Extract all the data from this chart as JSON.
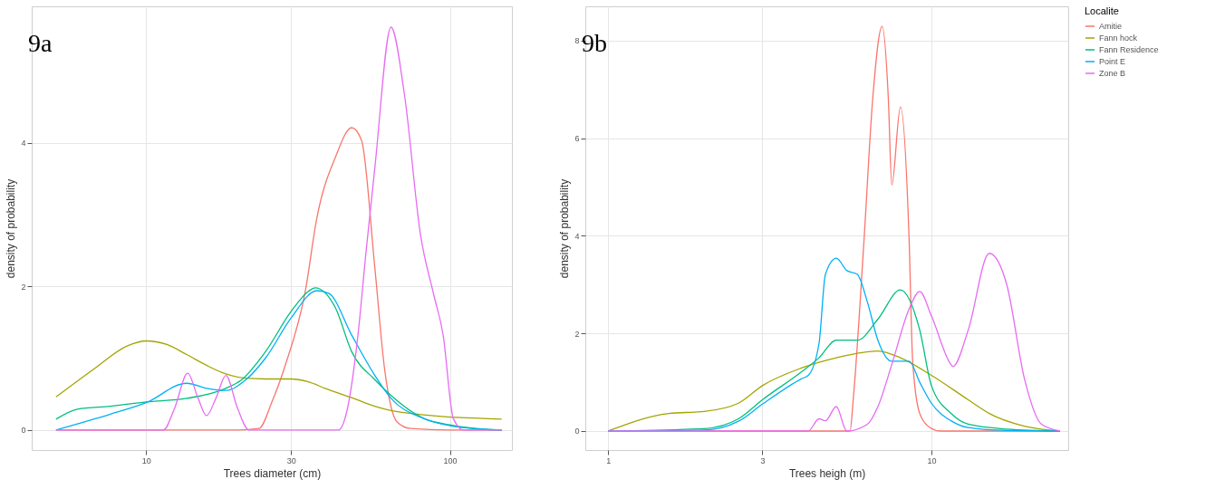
{
  "chart_data": [
    {
      "type": "line",
      "title": "9a",
      "xlabel": "Trees diameter (cm)",
      "ylabel": "density of probability",
      "log": "x",
      "grid": true,
      "xlim": [
        4.2,
        160
      ],
      "xticks": [
        10,
        30,
        100
      ],
      "ylim": [
        -0.28,
        5.9
      ],
      "yticks": [
        0,
        2,
        4
      ],
      "legend": false,
      "series": [
        {
          "color": "#f8766d",
          "x": [
            5.05,
            10,
            15,
            20,
            23.5,
            26,
            28.7,
            33.4,
            36.5,
            42,
            47.5,
            51.2,
            56.6,
            60.9,
            67,
            74,
            100,
            148
          ],
          "values": [
            0,
            0,
            0,
            0,
            0.02,
            0.4,
            0.9,
            1.93,
            2.96,
            3.8,
            4.21,
            4.03,
            2.26,
            0.86,
            0.11,
            0.02,
            0,
            0
          ]
        },
        {
          "color": "#a3a500",
          "x": [
            5.05,
            6.73,
            8.65,
            10,
            11.7,
            13.6,
            15.8,
            18.3,
            21.3,
            24.7,
            30,
            34.2,
            38.8,
            47.5,
            56.6,
            64,
            82,
            100,
            129,
            148
          ],
          "values": [
            0.46,
            0.85,
            1.17,
            1.24,
            1.19,
            1.05,
            0.9,
            0.78,
            0.72,
            0.71,
            0.71,
            0.67,
            0.58,
            0.45,
            0.33,
            0.27,
            0.21,
            0.18,
            0.16,
            0.15
          ]
        },
        {
          "color": "#00bf7d",
          "x": [
            5.05,
            5.94,
            7.63,
            10,
            13.6,
            18.3,
            20.5,
            24.7,
            30,
            34.2,
            36,
            42,
            47.5,
            56.6,
            64,
            82,
            100,
            129,
            148
          ],
          "values": [
            0.15,
            0.29,
            0.33,
            0.39,
            0.44,
            0.58,
            0.69,
            1.09,
            1.65,
            1.93,
            1.98,
            1.7,
            1.09,
            0.7,
            0.48,
            0.16,
            0.07,
            0.01,
            0
          ]
        },
        {
          "color": "#00b0f6",
          "x": [
            5.05,
            7.63,
            10,
            13.6,
            15.8,
            18.3,
            21.3,
            24.7,
            30,
            36.5,
            40,
            47.5,
            56.6,
            64,
            82,
            100,
            129,
            148
          ],
          "values": [
            0,
            0.22,
            0.38,
            0.65,
            0.58,
            0.55,
            0.7,
            1.0,
            1.56,
            1.94,
            1.9,
            1.32,
            0.76,
            0.44,
            0.16,
            0.06,
            0.01,
            0
          ]
        },
        {
          "color": "#e76bf3",
          "x": [
            5.05,
            10,
            11.4,
            12.4,
            13.7,
            14.8,
            15.8,
            17,
            18.3,
            20,
            21.8,
            30,
            43,
            46,
            49.8,
            53,
            56.6,
            64,
            70.8,
            80,
            88.5,
            95,
            102.6,
            111,
            148
          ],
          "values": [
            0,
            0,
            0,
            0.3,
            0.79,
            0.45,
            0.2,
            0.45,
            0.76,
            0.3,
            0,
            0,
            0,
            0.3,
            1.32,
            2.5,
            3.65,
            5.61,
            4.68,
            2.72,
            1.88,
            1.32,
            0.16,
            0,
            0
          ]
        }
      ]
    },
    {
      "type": "line",
      "title": "9b",
      "xlabel": "Trees heigh (m)",
      "ylabel": "density of probability",
      "log": "x",
      "grid": true,
      "xlim": [
        0.85,
        26.5
      ],
      "xticks": [
        1,
        3,
        10
      ],
      "ylim": [
        -0.39,
        8.7
      ],
      "yticks": [
        0,
        2,
        4,
        6,
        8
      ],
      "legend": "right",
      "legend_title": "Localite",
      "series": [
        {
          "name": "Amitie",
          "color": "#f8766d",
          "x": [
            1,
            3,
            5.6,
            5.74,
            6.19,
            6.58,
            7.04,
            7.36,
            7.54,
            8.02,
            8.53,
            8.75,
            9.2,
            9.9,
            10.7,
            25
          ],
          "values": [
            0,
            0,
            0,
            0.71,
            3.93,
            6.79,
            8.29,
            6.79,
            5.04,
            6.64,
            3.93,
            1.43,
            0.36,
            0.07,
            0,
            0
          ]
        },
        {
          "name": "Fann hock",
          "color": "#a3a500",
          "x": [
            1,
            1.54,
            1.98,
            2.53,
            3,
            3.96,
            5.08,
            6.83,
            8.02,
            10,
            13,
            15.1,
            19.4,
            25
          ],
          "values": [
            0,
            0.36,
            0.4,
            0.57,
            0.93,
            1.29,
            1.5,
            1.64,
            1.5,
            1.14,
            0.64,
            0.36,
            0.1,
            0
          ]
        },
        {
          "name": "Fann Residence",
          "color": "#00bf7d",
          "x": [
            1,
            1.98,
            2.53,
            3,
            3.96,
            4.49,
            5.08,
            5.9,
            6.83,
            8.02,
            9.2,
            10,
            11.5,
            13,
            17.1,
            25
          ],
          "values": [
            0,
            0.05,
            0.25,
            0.64,
            1.21,
            1.5,
            1.86,
            1.86,
            2.29,
            2.89,
            2.07,
            0.93,
            0.36,
            0.14,
            0.04,
            0
          ]
        },
        {
          "name": "Point E",
          "color": "#00b0f6",
          "x": [
            1,
            1.98,
            2.53,
            3,
            3.96,
            4.16,
            4.49,
            4.7,
            5.08,
            5.47,
            5.9,
            6.34,
            6.83,
            7.54,
            8.53,
            9.2,
            10,
            11.5,
            13,
            17.1,
            25
          ],
          "values": [
            0,
            0.02,
            0.2,
            0.55,
            1.07,
            1.14,
            1.79,
            3.21,
            3.54,
            3.29,
            3.21,
            2.64,
            1.86,
            1.43,
            1.43,
            1.0,
            0.57,
            0.21,
            0.07,
            0.01,
            0
          ]
        },
        {
          "name": "Zone B",
          "color": "#e76bf3",
          "x": [
            1,
            4.16,
            4.49,
            4.7,
            5.08,
            5.47,
            6.34,
            6.83,
            7.54,
            8.53,
            9.2,
            10,
            11.5,
            11.65,
            13,
            15.1,
            17.1,
            19.4,
            21.9,
            25
          ],
          "values": [
            0,
            0,
            0.25,
            0.21,
            0.5,
            0,
            0.14,
            0.5,
            1.36,
            2.5,
            2.86,
            2.36,
            1.36,
            1.32,
            2.07,
            3.64,
            3.0,
            1.07,
            0.14,
            0
          ]
        }
      ]
    }
  ]
}
